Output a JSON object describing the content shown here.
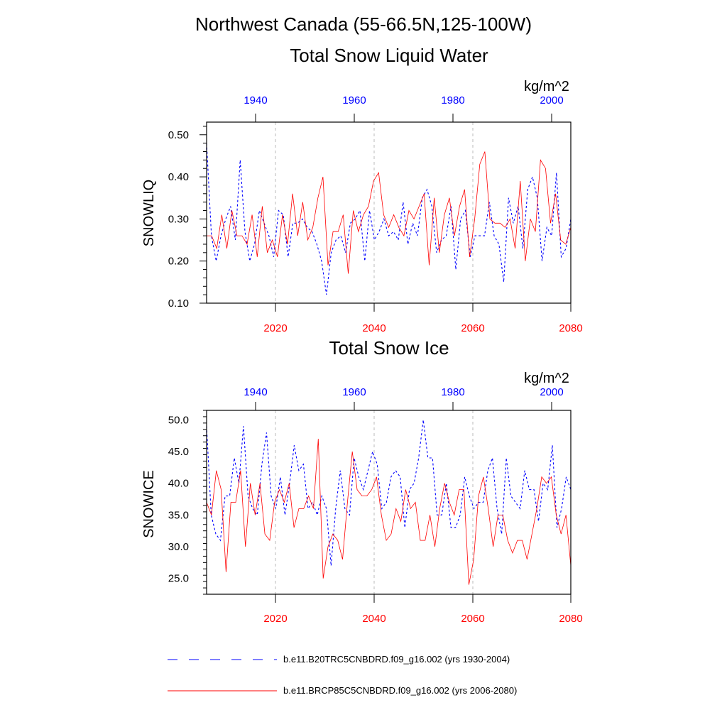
{
  "figure": {
    "title_line1": "Northwest Canada (55-66.5N,125-100W)",
    "legend": [
      {
        "label": "b.e11.B20TRC5CNBDRD.f09_g16.002 (yrs 1930-2004)",
        "color": "#0000ff",
        "style": "dashed"
      },
      {
        "label": "b.e11.BRCP85C5CNBDRD.f09_g16.002 (yrs 2006-2080)",
        "color": "#ff0000",
        "style": "solid"
      }
    ]
  },
  "chart_data": [
    {
      "type": "line",
      "title": "Total Snow Liquid Water",
      "units": "kg/m^2",
      "ylabel": "SNOWLIQ",
      "ylim": [
        0.1,
        0.53
      ],
      "yticks": [
        "0.10",
        "0.20",
        "0.30",
        "0.40",
        "0.50"
      ],
      "ytick_values": [
        0.1,
        0.2,
        0.3,
        0.4,
        0.5
      ],
      "bottom_xticks": [
        "2020",
        "2040",
        "2060",
        "2080"
      ],
      "top_xticks": [
        "1940",
        "1960",
        "1980",
        "2000"
      ],
      "series": [
        {
          "name": "b.e11.B20TRC5CNBDRD.f09_g16.002 (yrs 1930-2004)",
          "color": "#0000ff",
          "dash": true,
          "values": [
            0.48,
            0.26,
            0.2,
            0.26,
            0.3,
            0.33,
            0.25,
            0.44,
            0.27,
            0.2,
            0.24,
            0.32,
            0.29,
            0.26,
            0.21,
            0.32,
            0.31,
            0.21,
            0.29,
            0.29,
            0.3,
            0.28,
            0.27,
            0.24,
            0.2,
            0.12,
            0.22,
            0.25,
            0.26,
            0.22,
            0.29,
            0.3,
            0.32,
            0.2,
            0.32,
            0.25,
            0.27,
            0.3,
            0.26,
            0.27,
            0.25,
            0.34,
            0.24,
            0.29,
            0.26,
            0.35,
            0.37,
            0.33,
            0.22,
            0.25,
            0.26,
            0.33,
            0.18,
            0.3,
            0.32,
            0.21,
            0.26,
            0.26,
            0.26,
            0.34,
            0.26,
            0.24,
            0.15,
            0.35,
            0.29,
            0.33,
            0.23,
            0.37,
            0.4,
            0.35,
            0.2,
            0.28,
            0.26,
            0.41,
            0.21,
            0.23,
            0.3
          ]
        },
        {
          "name": "b.e11.BRCP85C5CNBDRD.f09_g16.002 (yrs 2006-2080)",
          "color": "#ff0000",
          "dash": false,
          "values": [
            0.26,
            0.26,
            0.23,
            0.31,
            0.23,
            0.32,
            0.26,
            0.26,
            0.24,
            0.31,
            0.21,
            0.33,
            0.22,
            0.25,
            0.21,
            0.31,
            0.24,
            0.36,
            0.26,
            0.34,
            0.25,
            0.28,
            0.35,
            0.4,
            0.19,
            0.27,
            0.27,
            0.31,
            0.17,
            0.32,
            0.27,
            0.31,
            0.33,
            0.39,
            0.41,
            0.31,
            0.28,
            0.31,
            0.28,
            0.26,
            0.32,
            0.3,
            0.33,
            0.36,
            0.19,
            0.35,
            0.22,
            0.31,
            0.35,
            0.26,
            0.33,
            0.37,
            0.21,
            0.3,
            0.43,
            0.46,
            0.3,
            0.29,
            0.29,
            0.28,
            0.3,
            0.23,
            0.39,
            0.2,
            0.3,
            0.27,
            0.44,
            0.42,
            0.29,
            0.36,
            0.25,
            0.24,
            0.28
          ]
        }
      ]
    },
    {
      "type": "line",
      "title": "Total Snow Ice",
      "units": "kg/m^2",
      "ylabel": "SNOWICE",
      "ylim": [
        22.5,
        51.5
      ],
      "yticks": [
        "25.0",
        "30.0",
        "35.0",
        "40.0",
        "45.0",
        "50.0"
      ],
      "ytick_values": [
        25,
        30,
        35,
        40,
        45,
        50
      ],
      "bottom_xticks": [
        "2020",
        "2040",
        "2060",
        "2080"
      ],
      "top_xticks": [
        "1940",
        "1960",
        "1980",
        "2000"
      ],
      "series": [
        {
          "name": "b.e11.B20TRC5CNBDRD.f09_g16.002 (yrs 1930-2004)",
          "color": "#0000ff",
          "dash": true,
          "values": [
            49,
            35,
            32,
            31,
            38,
            38,
            44,
            40,
            49,
            38,
            36,
            35,
            43,
            48,
            38,
            36,
            41,
            35,
            40,
            46,
            42,
            43,
            36,
            37,
            35,
            38,
            36,
            27,
            36,
            42,
            36,
            35,
            44,
            41,
            39,
            42,
            45,
            43,
            36,
            37,
            41,
            42,
            41,
            33,
            39,
            40,
            44,
            50,
            44,
            44,
            35,
            35,
            40,
            33,
            33,
            35,
            41,
            38,
            36,
            37,
            37,
            42,
            44,
            36,
            32,
            44,
            38,
            37,
            36,
            42,
            39,
            39,
            34,
            40,
            39,
            46,
            33,
            36,
            41,
            39
          ]
        },
        {
          "name": "b.e11.BRCP85C5CNBDRD.f09_g16.002 (yrs 2006-2080)",
          "color": "#ff0000",
          "dash": false,
          "values": [
            37,
            35,
            42,
            39,
            26,
            37,
            37,
            42,
            30,
            40,
            35,
            40,
            32,
            31,
            37,
            39,
            37,
            40,
            33,
            36,
            36,
            38,
            36,
            47,
            25,
            30,
            32,
            31,
            28,
            37,
            45,
            39,
            38,
            38,
            39,
            41,
            35,
            31,
            32,
            36,
            34,
            39,
            36,
            37,
            31,
            31,
            35,
            30,
            36,
            40,
            37,
            35,
            39,
            39,
            24,
            28,
            38,
            41,
            36,
            30,
            35,
            35,
            31,
            29,
            31,
            31,
            28,
            32,
            36,
            41,
            40,
            41,
            35,
            32,
            35,
            27
          ]
        }
      ]
    }
  ]
}
